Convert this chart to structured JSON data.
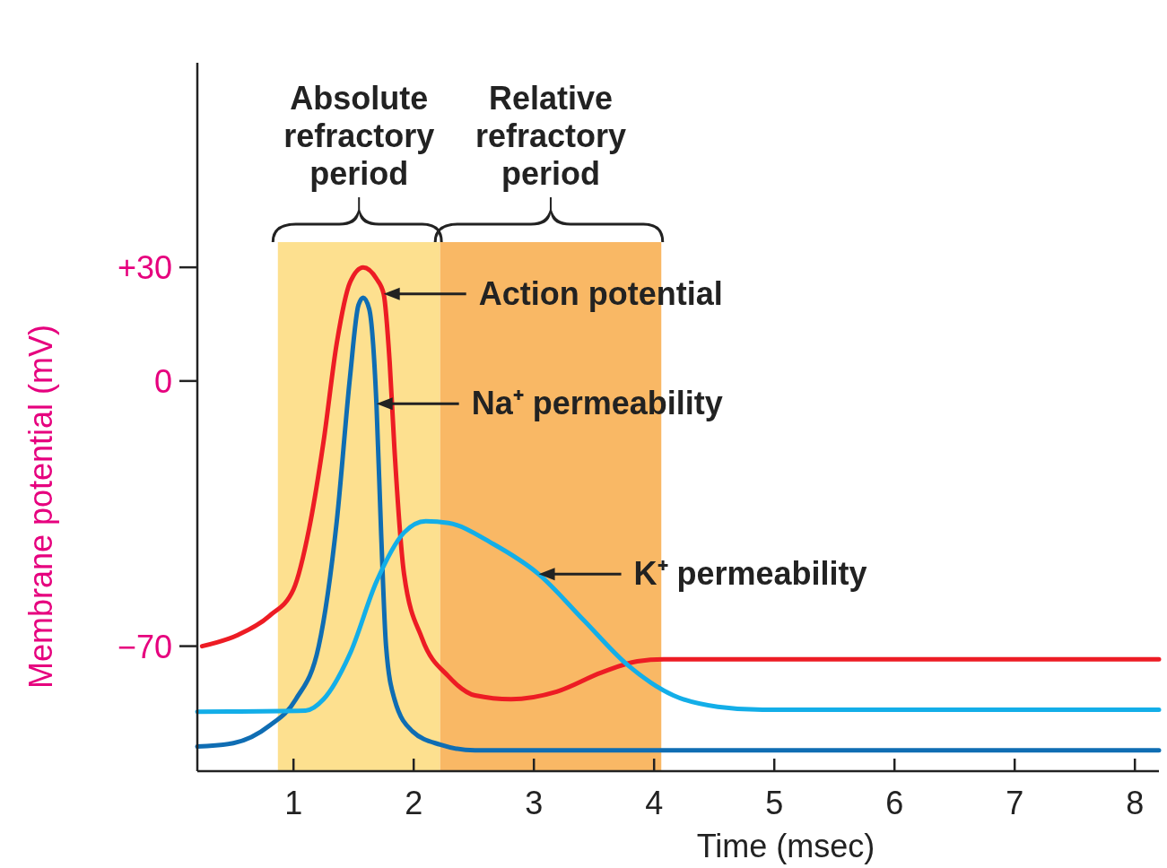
{
  "chart_data": {
    "type": "line",
    "xlabel": "Time (msec)",
    "ylabel": "Membrane potential (mV)",
    "xlim": [
      0.2,
      8.2
    ],
    "xticks": [
      1,
      2,
      3,
      4,
      5,
      6,
      7,
      8
    ],
    "ylim": [
      -103,
      84
    ],
    "yticks": [
      {
        "value": 30,
        "label": "+30"
      },
      0,
      {
        "value": -70,
        "label": "−70"
      }
    ],
    "grid": false,
    "marker": "none",
    "line_style": "solid",
    "series": [
      {
        "color": "#ed1c24",
        "x": [
          0.24,
          0.54,
          0.8,
          1.0,
          1.13,
          1.25,
          1.36,
          1.47,
          1.58,
          1.69,
          1.75,
          1.8,
          1.84,
          1.92,
          2.07,
          2.29,
          2.51,
          2.81,
          3.19,
          3.56,
          3.86,
          4.08,
          8.2
        ],
        "values": [
          -70,
          -67,
          -62,
          -55,
          -39,
          -16,
          10,
          26,
          30,
          27,
          23,
          5,
          -18,
          -51,
          -68,
          -78,
          -83,
          -84,
          -82,
          -77,
          -74,
          -73.5,
          -73.5
        ]
      },
      {
        "color": "#0f6db3",
        "x": [
          0.2,
          0.5,
          0.8,
          1.02,
          1.21,
          1.36,
          1.47,
          1.54,
          1.58,
          1.63,
          1.69,
          1.73,
          1.77,
          1.84,
          1.99,
          2.22,
          2.51,
          8.2
        ],
        "values": [
          -96.5,
          -95.6,
          -91,
          -84,
          -70,
          -37,
          1,
          20,
          22,
          19,
          -6,
          -41,
          -70,
          -84,
          -92.5,
          -96,
          -97.5,
          -97.5
        ]
      },
      {
        "color": "#13aee8",
        "x": [
          0.2,
          1.1,
          1.25,
          1.47,
          1.69,
          1.92,
          2.1,
          2.29,
          2.66,
          3.04,
          3.41,
          3.78,
          4.16,
          4.53,
          4.9,
          8.2
        ],
        "values": [
          -87.3,
          -87,
          -84,
          -72,
          -53,
          -40,
          -37,
          -37.5,
          -43,
          -51,
          -63,
          -75,
          -83,
          -86,
          -86.8,
          -86.8
        ]
      }
    ],
    "bands": [
      {
        "axis": "x",
        "from": 0.87,
        "to": 2.22,
        "label": "Absolute refractory period",
        "color": "#fde08f"
      },
      {
        "axis": "x",
        "from": 2.22,
        "to": 4.06,
        "label": "Relative refractory period",
        "color": "#f9b865"
      }
    ],
    "annotations": [
      {
        "text": "Action potential",
        "x": 1.75,
        "y": 23
      },
      {
        "text": "Na⁺ permeability",
        "x": 1.69,
        "y": -6
      },
      {
        "text": "K⁺ permeability",
        "x": 3.04,
        "y": -51
      }
    ]
  }
}
